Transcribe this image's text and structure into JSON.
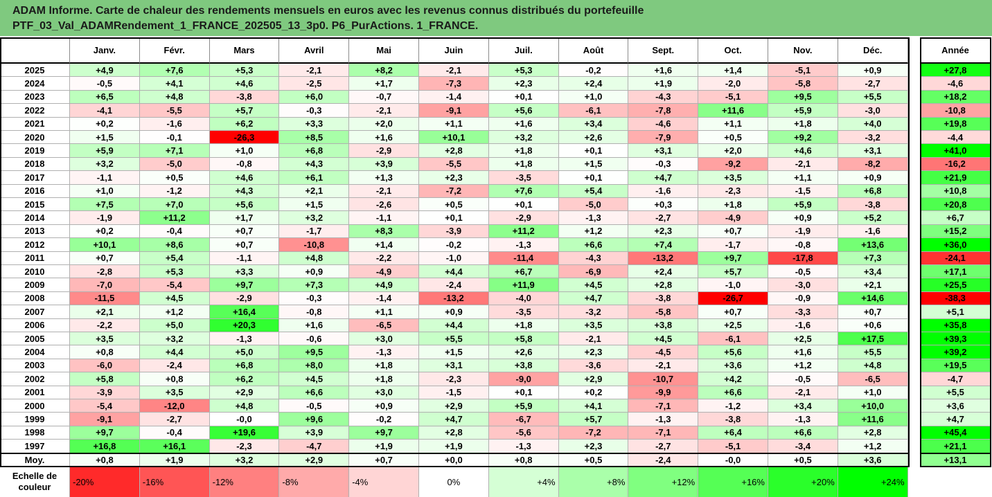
{
  "title": {
    "line1": "ADAM Informe. Carte de chaleur des rendements mensuels en euros avec les revenus connus distribués du portefeuille",
    "line2": "PTF_03_Val_ADAMRendement_1_FRANCE_202505_13_3p0. P6_PurActions. 1_FRANCE."
  },
  "chart_data": {
    "type": "heatmap",
    "columns": [
      "Janv.",
      "Févr.",
      "Mars",
      "Avril",
      "Mai",
      "Juin",
      "Juil.",
      "Août",
      "Sept.",
      "Oct.",
      "Nov.",
      "Déc."
    ],
    "year_column": "Année",
    "rows": [
      {
        "year": "2025",
        "values": [
          4.9,
          7.6,
          5.3,
          -2.1,
          8.2,
          -2.1,
          5.3,
          -0.2,
          1.6,
          1.4,
          -5.1,
          0.9
        ],
        "annual": 27.8
      },
      {
        "year": "2024",
        "values": [
          -0.5,
          4.1,
          4.6,
          -2.5,
          1.7,
          -7.3,
          2.3,
          2.4,
          1.9,
          -2.0,
          -5.8,
          -2.7
        ],
        "annual": -4.6
      },
      {
        "year": "2023",
        "values": [
          6.5,
          4.8,
          -3.8,
          6.0,
          -0.7,
          -1.4,
          0.1,
          1.0,
          -4.3,
          -5.1,
          9.5,
          5.5
        ],
        "annual": 18.2
      },
      {
        "year": "2022",
        "values": [
          -4.1,
          -5.5,
          5.7,
          -0.3,
          -2.1,
          -9.1,
          5.6,
          -6.1,
          -7.8,
          11.6,
          5.9,
          -3.0
        ],
        "annual": -10.8
      },
      {
        "year": "2021",
        "values": [
          0.2,
          -1.6,
          6.2,
          3.3,
          2.0,
          1.1,
          1.6,
          3.4,
          -4.6,
          1.1,
          1.8,
          4.0
        ],
        "annual": 19.8
      },
      {
        "year": "2020",
        "values": [
          1.5,
          -0.1,
          -26.3,
          8.5,
          1.6,
          10.1,
          3.2,
          2.6,
          -7.9,
          0.5,
          9.2,
          -3.2
        ],
        "annual": -4.4
      },
      {
        "year": "2019",
        "values": [
          5.9,
          7.1,
          1.0,
          6.8,
          -2.9,
          2.8,
          1.8,
          0.1,
          3.1,
          2.0,
          4.6,
          3.1
        ],
        "annual": 41.0
      },
      {
        "year": "2018",
        "values": [
          3.2,
          -5.0,
          -0.8,
          4.3,
          3.9,
          -5.5,
          1.8,
          1.5,
          -0.3,
          -9.2,
          -2.1,
          -8.2
        ],
        "annual": -16.2
      },
      {
        "year": "2017",
        "values": [
          -1.1,
          0.5,
          4.6,
          6.1,
          1.3,
          2.3,
          -3.5,
          0.1,
          4.7,
          3.5,
          1.1,
          0.9
        ],
        "annual": 21.9
      },
      {
        "year": "2016",
        "values": [
          1.0,
          -1.2,
          4.3,
          2.1,
          -2.1,
          -7.2,
          7.6,
          5.4,
          -1.6,
          -2.3,
          -1.5,
          6.8
        ],
        "annual": 10.8
      },
      {
        "year": "2015",
        "values": [
          7.5,
          7.0,
          5.6,
          1.5,
          -2.6,
          0.5,
          0.1,
          -5.0,
          0.3,
          1.8,
          5.9,
          -3.8
        ],
        "annual": 20.8
      },
      {
        "year": "2014",
        "values": [
          -1.9,
          11.2,
          1.7,
          3.2,
          -1.1,
          0.1,
          -2.9,
          -1.3,
          -2.7,
          -4.9,
          0.9,
          5.2
        ],
        "annual": 6.7
      },
      {
        "year": "2013",
        "values": [
          0.2,
          -0.4,
          0.7,
          -1.7,
          8.3,
          -3.9,
          11.2,
          1.2,
          2.3,
          0.7,
          -1.9,
          -1.6
        ],
        "annual": 15.2
      },
      {
        "year": "2012",
        "values": [
          10.1,
          8.6,
          0.7,
          -10.8,
          1.4,
          -0.2,
          -1.3,
          6.6,
          7.4,
          -1.7,
          -0.8,
          13.6
        ],
        "annual": 36.0
      },
      {
        "year": "2011",
        "values": [
          0.7,
          5.4,
          -1.1,
          4.8,
          -2.2,
          -1.0,
          -11.4,
          -4.3,
          -13.2,
          9.7,
          -17.8,
          7.3
        ],
        "annual": -24.1
      },
      {
        "year": "2010",
        "values": [
          -2.8,
          5.3,
          3.3,
          0.9,
          -4.9,
          4.4,
          6.7,
          -6.9,
          2.4,
          5.7,
          -0.5,
          3.4
        ],
        "annual": 17.1
      },
      {
        "year": "2009",
        "values": [
          -7.0,
          -5.4,
          9.7,
          7.3,
          4.9,
          -2.4,
          11.9,
          4.5,
          2.8,
          -1.0,
          -3.0,
          2.1
        ],
        "annual": 25.5
      },
      {
        "year": "2008",
        "values": [
          -11.5,
          4.5,
          -2.9,
          -0.3,
          -1.4,
          -13.2,
          -4.0,
          4.7,
          -3.8,
          -26.7,
          -0.9,
          14.6
        ],
        "annual": -38.3
      },
      {
        "year": "2007",
        "values": [
          2.1,
          1.2,
          16.4,
          -0.8,
          1.1,
          0.9,
          -3.5,
          -3.2,
          -5.8,
          0.7,
          -3.3,
          0.7
        ],
        "annual": 5.1
      },
      {
        "year": "2006",
        "values": [
          -2.2,
          5.0,
          20.3,
          1.6,
          -6.5,
          4.4,
          1.8,
          3.5,
          3.8,
          2.5,
          -1.6,
          0.6
        ],
        "annual": 35.8
      },
      {
        "year": "2005",
        "values": [
          3.5,
          3.2,
          -1.3,
          -0.6,
          3.0,
          5.5,
          5.8,
          -2.1,
          4.5,
          -6.1,
          2.5,
          17.5
        ],
        "annual": 39.3
      },
      {
        "year": "2004",
        "values": [
          0.8,
          4.4,
          5.0,
          9.5,
          -1.3,
          1.5,
          2.6,
          2.3,
          -4.5,
          5.6,
          1.6,
          5.5
        ],
        "annual": 39.2
      },
      {
        "year": "2003",
        "values": [
          -6.0,
          -2.4,
          6.8,
          8.0,
          1.8,
          3.1,
          3.8,
          -3.6,
          -2.1,
          3.6,
          1.2,
          4.8
        ],
        "annual": 19.5
      },
      {
        "year": "2002",
        "values": [
          5.8,
          0.8,
          6.2,
          4.5,
          1.8,
          -2.3,
          -9.0,
          2.9,
          -10.7,
          4.2,
          -0.5,
          -6.5
        ],
        "annual": -4.7
      },
      {
        "year": "2001",
        "values": [
          -3.9,
          3.5,
          2.9,
          6.6,
          3.0,
          -1.5,
          0.1,
          0.2,
          -9.9,
          6.6,
          -2.1,
          1.0
        ],
        "annual": 5.5
      },
      {
        "year": "2000",
        "values": [
          -5.4,
          -12.0,
          4.8,
          -0.5,
          0.9,
          2.9,
          5.9,
          4.1,
          -7.1,
          -1.2,
          3.4,
          10.0
        ],
        "annual": 3.6
      },
      {
        "year": "1999",
        "values": [
          -9.1,
          -2.7,
          -0.0,
          9.6,
          -0.2,
          4.7,
          -6.7,
          5.7,
          -1.3,
          -3.8,
          -1.3,
          11.6
        ],
        "annual": 4.7
      },
      {
        "year": "1998",
        "values": [
          9.7,
          -0.4,
          19.6,
          3.9,
          9.7,
          2.8,
          -5.6,
          -7.2,
          -7.1,
          6.4,
          6.6,
          2.8
        ],
        "annual": 45.4
      },
      {
        "year": "1997",
        "values": [
          16.8,
          16.1,
          -2.3,
          -4.7,
          1.9,
          1.9,
          -1.3,
          2.3,
          -2.7,
          -5.1,
          -3.4,
          1.2
        ],
        "annual": 21.1
      }
    ],
    "average": {
      "label": "Moy.",
      "values": [
        0.8,
        1.9,
        3.2,
        2.9,
        0.7,
        0.0,
        0.8,
        0.5,
        -2.4,
        -0.0,
        0.5,
        3.6
      ],
      "annual": 13.1
    },
    "scale": {
      "label_line1": "Echelle de",
      "label_line2": "couleur",
      "stops": [
        "-20%",
        "-16%",
        "-12%",
        "-8%",
        "-4%",
        "0%",
        "+4%",
        "+8%",
        "+12%",
        "+16%",
        "+20%",
        "+24%"
      ]
    },
    "colors": {
      "negative_max": "#ff0000",
      "neutral": "#ffffff",
      "positive_max": "#00ff00"
    }
  }
}
